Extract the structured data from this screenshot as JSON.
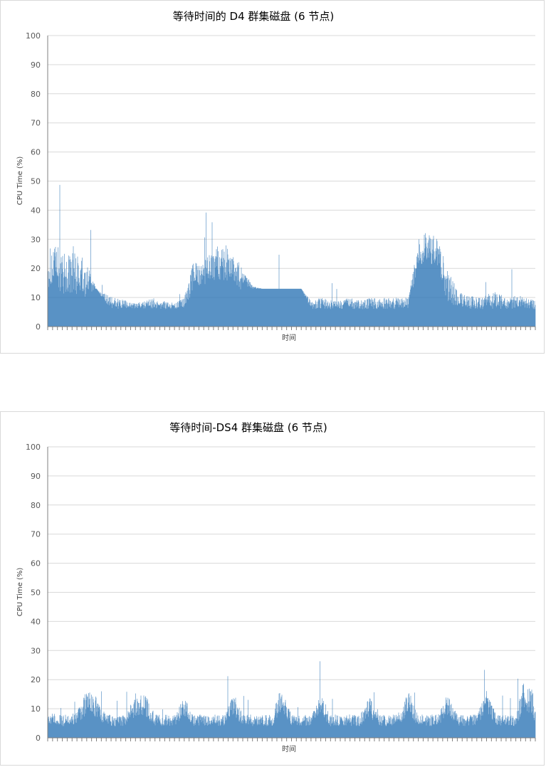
{
  "chart_data": [
    {
      "type": "area",
      "title": "等待时间的 D4 群集磁盘 (6 节点)",
      "xlabel": "时间",
      "ylabel": "CPU Time (%)",
      "ylim": [
        0,
        100
      ],
      "yticks": [
        "0",
        "10",
        "20",
        "30",
        "40",
        "50",
        "60",
        "70",
        "80",
        "90",
        "100"
      ],
      "grid": true,
      "color": "#2e75b6",
      "x_positions": [
        0,
        0.02,
        0.04,
        0.06,
        0.08,
        0.1,
        0.12,
        0.14,
        0.16,
        0.18,
        0.2,
        0.22,
        0.24,
        0.26,
        0.28,
        0.3,
        0.32,
        0.34,
        0.36,
        0.38,
        0.4,
        0.42,
        0.44,
        0.46,
        0.48,
        0.5,
        0.52,
        0.54,
        0.56,
        0.58,
        0.6,
        0.62,
        0.64,
        0.66,
        0.68,
        0.7,
        0.72,
        0.74,
        0.76,
        0.78,
        0.8,
        0.82,
        0.84,
        0.86,
        0.88,
        0.9,
        0.92,
        0.94,
        0.96,
        0.98,
        1
      ],
      "series_peak": [
        27,
        28,
        25,
        26,
        22,
        13,
        11,
        10,
        9,
        8,
        9,
        10,
        9,
        8,
        10,
        24,
        24,
        26,
        30,
        26,
        20,
        14,
        13,
        13,
        13,
        13,
        13,
        9,
        10,
        9,
        9,
        10,
        9,
        10,
        10,
        10,
        10,
        10,
        30,
        33,
        30,
        20,
        13,
        11,
        10,
        11,
        12,
        10,
        11,
        10,
        9
      ],
      "series_base": [
        13,
        12,
        11,
        11,
        10,
        13,
        7,
        6,
        6,
        6,
        6,
        6,
        6,
        6,
        6,
        12,
        14,
        16,
        16,
        14,
        12,
        13,
        13,
        13,
        13,
        13,
        13,
        6,
        6,
        6,
        6,
        6,
        6,
        6,
        6,
        6,
        6,
        6,
        21,
        22,
        20,
        8,
        7,
        6,
        6,
        6,
        6,
        6,
        6,
        6,
        6
      ]
    },
    {
      "type": "area",
      "title": "等待时间-DS4 群集磁盘 (6 节点)",
      "xlabel": "时间",
      "ylabel": "CPU Time (%)",
      "ylim": [
        0,
        100
      ],
      "yticks": [
        "0",
        "10",
        "20",
        "30",
        "40",
        "50",
        "60",
        "70",
        "80",
        "90",
        "100"
      ],
      "grid": true,
      "color": "#2e75b6",
      "x_positions": [
        0,
        0.02,
        0.04,
        0.06,
        0.08,
        0.1,
        0.12,
        0.14,
        0.16,
        0.18,
        0.2,
        0.22,
        0.24,
        0.26,
        0.28,
        0.3,
        0.32,
        0.34,
        0.36,
        0.38,
        0.4,
        0.42,
        0.44,
        0.46,
        0.48,
        0.5,
        0.52,
        0.54,
        0.56,
        0.58,
        0.6,
        0.62,
        0.64,
        0.66,
        0.68,
        0.7,
        0.72,
        0.74,
        0.76,
        0.78,
        0.8,
        0.82,
        0.84,
        0.86,
        0.88,
        0.9,
        0.92,
        0.94,
        0.96,
        0.98,
        1
      ],
      "series_peak": [
        9,
        8,
        8,
        9,
        17,
        14,
        8,
        8,
        8,
        15,
        15,
        8,
        8,
        8,
        14,
        8,
        8,
        8,
        8,
        16,
        8,
        8,
        8,
        8,
        18,
        8,
        8,
        8,
        15,
        8,
        8,
        8,
        8,
        14,
        8,
        8,
        8,
        17,
        8,
        8,
        8,
        15,
        8,
        8,
        8,
        17,
        8,
        8,
        8,
        22,
        14
      ],
      "series_base": [
        5,
        4,
        4,
        5,
        8,
        7,
        4,
        4,
        4,
        7,
        7,
        4,
        4,
        4,
        7,
        4,
        4,
        4,
        4,
        8,
        4,
        4,
        4,
        4,
        9,
        4,
        4,
        4,
        8,
        4,
        4,
        4,
        4,
        7,
        4,
        4,
        4,
        8,
        4,
        4,
        4,
        8,
        4,
        4,
        4,
        9,
        4,
        4,
        4,
        10,
        5
      ]
    }
  ]
}
